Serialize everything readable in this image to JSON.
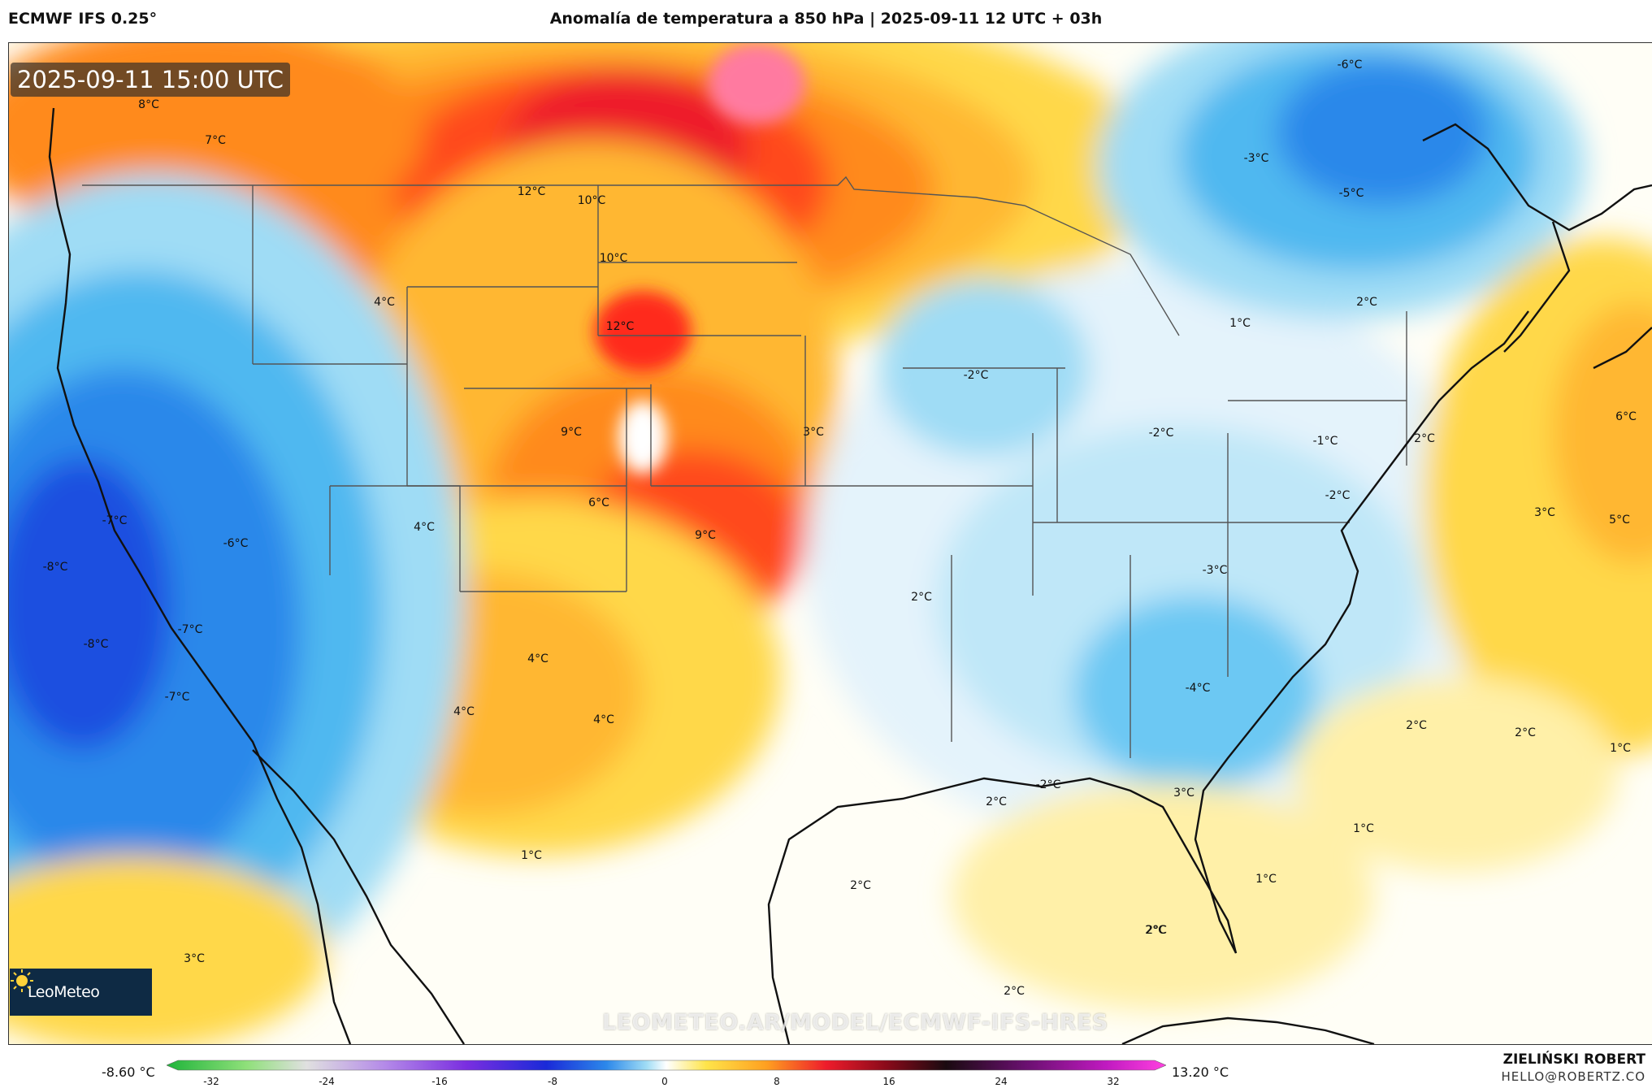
{
  "header": {
    "model": "ECMWF IFS 0.25°",
    "title": "Anomalía de temperatura a 850 hPa | 2025-09-11 12 UTC + 03h"
  },
  "map": {
    "valid_time": "2025-09-11 15:00 UTC",
    "watermark": "LEOMETEO.AR/MODEL/ECMWF-IFS-HRES",
    "logo": "LeoMeteo",
    "labels": [
      {
        "text": "8°C"
      },
      {
        "text": "7°C"
      },
      {
        "text": "12°C"
      },
      {
        "text": "10°C"
      },
      {
        "text": "10°C"
      },
      {
        "text": "12°C"
      },
      {
        "text": "4°C"
      },
      {
        "text": "9°C"
      },
      {
        "text": "3°C"
      },
      {
        "text": "6°C"
      },
      {
        "text": "9°C"
      },
      {
        "text": "4°C"
      },
      {
        "text": "-7°C"
      },
      {
        "text": "-6°C"
      },
      {
        "text": "-8°C"
      },
      {
        "text": "-7°C"
      },
      {
        "text": "-8°C"
      },
      {
        "text": "-7°C"
      },
      {
        "text": "4°C"
      },
      {
        "text": "4°C"
      },
      {
        "text": "4°C"
      },
      {
        "text": "2°C"
      },
      {
        "text": "1°C"
      },
      {
        "text": "2°C"
      },
      {
        "text": "3°C"
      },
      {
        "text": "2°C"
      },
      {
        "text": "-6°C"
      },
      {
        "text": "-3°C"
      },
      {
        "text": "-5°C"
      },
      {
        "text": "-2°C"
      },
      {
        "text": "1°C"
      },
      {
        "text": "2°C"
      },
      {
        "text": "-2°C"
      },
      {
        "text": "-1°C"
      },
      {
        "text": "2°C"
      },
      {
        "text": "-2°C"
      },
      {
        "text": "-3°C"
      },
      {
        "text": "-4°C"
      },
      {
        "text": "-2°C"
      },
      {
        "text": "2°C"
      },
      {
        "text": "3°C"
      },
      {
        "text": "1°C"
      },
      {
        "text": "2°C"
      },
      {
        "text": "6°C"
      },
      {
        "text": "3°C"
      },
      {
        "text": "5°C"
      },
      {
        "text": "2°C"
      },
      {
        "text": "2°C"
      },
      {
        "text": "1°C"
      },
      {
        "text": "1°C"
      },
      {
        "text": "2°C"
      }
    ]
  },
  "colorbar": {
    "min_value": "-8.60 °C",
    "max_value": "13.20 °C",
    "ticks": [
      "-32",
      "-24",
      "-16",
      "-8",
      "0",
      "8",
      "16",
      "24",
      "32"
    ]
  },
  "footer": {
    "author": "ZIELIŃSKI ROBERT",
    "contact": "HELLO@ROBERTZ.CO"
  }
}
